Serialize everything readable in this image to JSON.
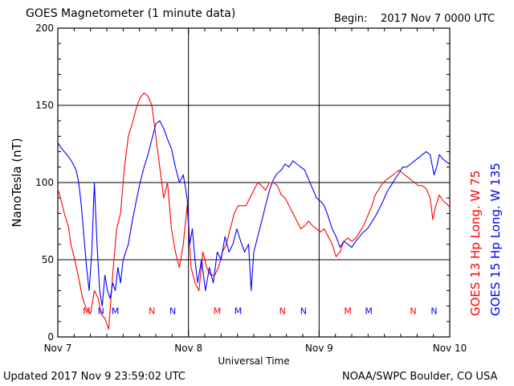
{
  "header": {
    "title": "GOES Magnetometer (1 minute data)",
    "begin_label": "Begin:",
    "begin_value": "2017 Nov 7 0000 UTC"
  },
  "footer": {
    "updated": "Updated 2017 Nov  9 23:59:02 UTC",
    "credit": "NOAA/SWPC Boulder, CO USA"
  },
  "colors": {
    "goes13": "#ff0000",
    "goes15": "#0000ff",
    "axis": "#000000"
  },
  "chart_data": {
    "type": "line",
    "title": "GOES Magnetometer (1 minute data)",
    "xlabel": "Universal Time",
    "ylabel": "NanoTesla (nT)",
    "x_unit": "days since 2017 Nov 7 0000 UTC",
    "xlim": [
      0,
      3
    ],
    "ylim": [
      0,
      200
    ],
    "x_ticks": [
      0,
      1,
      2,
      3
    ],
    "x_tick_labels": [
      "Nov 7",
      "Nov 8",
      "Nov 9",
      "Nov 10"
    ],
    "y_ticks": [
      0,
      50,
      100,
      150,
      200
    ],
    "y_tick_labels": [
      "0",
      "50",
      "100",
      "150",
      "200"
    ],
    "grid": true,
    "legend_position": "right, rotated vertical",
    "series": [
      {
        "name": "GOES 13 Hp  Long. W 75",
        "color": "#ff0000",
        "points": [
          [
            0.0,
            96
          ],
          [
            0.02,
            90
          ],
          [
            0.05,
            80
          ],
          [
            0.08,
            72
          ],
          [
            0.1,
            60
          ],
          [
            0.13,
            50
          ],
          [
            0.16,
            38
          ],
          [
            0.19,
            25
          ],
          [
            0.22,
            18
          ],
          [
            0.25,
            15
          ],
          [
            0.28,
            30
          ],
          [
            0.31,
            25
          ],
          [
            0.33,
            15
          ],
          [
            0.36,
            12
          ],
          [
            0.39,
            5
          ],
          [
            0.42,
            40
          ],
          [
            0.45,
            70
          ],
          [
            0.48,
            80
          ],
          [
            0.51,
            110
          ],
          [
            0.54,
            130
          ],
          [
            0.57,
            138
          ],
          [
            0.6,
            148
          ],
          [
            0.63,
            155
          ],
          [
            0.66,
            158
          ],
          [
            0.69,
            156
          ],
          [
            0.72,
            150
          ],
          [
            0.75,
            130
          ],
          [
            0.78,
            110
          ],
          [
            0.81,
            90
          ],
          [
            0.84,
            100
          ],
          [
            0.87,
            70
          ],
          [
            0.9,
            55
          ],
          [
            0.93,
            45
          ],
          [
            0.96,
            60
          ],
          [
            0.99,
            85
          ],
          [
            1.02,
            45
          ],
          [
            1.05,
            35
          ],
          [
            1.08,
            30
          ],
          [
            1.11,
            55
          ],
          [
            1.14,
            45
          ],
          [
            1.17,
            40
          ],
          [
            1.2,
            40
          ],
          [
            1.23,
            45
          ],
          [
            1.26,
            55
          ],
          [
            1.29,
            60
          ],
          [
            1.32,
            70
          ],
          [
            1.35,
            80
          ],
          [
            1.38,
            85
          ],
          [
            1.41,
            85
          ],
          [
            1.44,
            85
          ],
          [
            1.47,
            90
          ],
          [
            1.5,
            95
          ],
          [
            1.53,
            100
          ],
          [
            1.56,
            98
          ],
          [
            1.59,
            95
          ],
          [
            1.62,
            100
          ],
          [
            1.65,
            100
          ],
          [
            1.68,
            98
          ],
          [
            1.71,
            92
          ],
          [
            1.74,
            90
          ],
          [
            1.77,
            85
          ],
          [
            1.8,
            80
          ],
          [
            1.83,
            75
          ],
          [
            1.86,
            70
          ],
          [
            1.89,
            72
          ],
          [
            1.92,
            75
          ],
          [
            1.95,
            72
          ],
          [
            1.98,
            70
          ],
          [
            2.01,
            68
          ],
          [
            2.04,
            70
          ],
          [
            2.07,
            65
          ],
          [
            2.1,
            60
          ],
          [
            2.13,
            52
          ],
          [
            2.16,
            55
          ],
          [
            2.19,
            62
          ],
          [
            2.22,
            64
          ],
          [
            2.25,
            62
          ],
          [
            2.28,
            64
          ],
          [
            2.31,
            68
          ],
          [
            2.34,
            72
          ],
          [
            2.37,
            78
          ],
          [
            2.4,
            84
          ],
          [
            2.43,
            92
          ],
          [
            2.46,
            96
          ],
          [
            2.49,
            100
          ],
          [
            2.52,
            102
          ],
          [
            2.55,
            104
          ],
          [
            2.58,
            106
          ],
          [
            2.61,
            108
          ],
          [
            2.64,
            106
          ],
          [
            2.67,
            104
          ],
          [
            2.7,
            102
          ],
          [
            2.73,
            100
          ],
          [
            2.76,
            98
          ],
          [
            2.79,
            98
          ],
          [
            2.82,
            96
          ],
          [
            2.85,
            90
          ],
          [
            2.87,
            76
          ],
          [
            2.89,
            84
          ],
          [
            2.92,
            92
          ],
          [
            2.95,
            88
          ],
          [
            2.98,
            86
          ],
          [
            3.0,
            84
          ]
        ]
      },
      {
        "name": "GOES 15 Hp  Long. W 135",
        "color": "#0000ff",
        "points": [
          [
            0.0,
            126
          ],
          [
            0.02,
            123
          ],
          [
            0.05,
            120
          ],
          [
            0.08,
            117
          ],
          [
            0.11,
            113
          ],
          [
            0.14,
            108
          ],
          [
            0.16,
            100
          ],
          [
            0.18,
            85
          ],
          [
            0.2,
            65
          ],
          [
            0.22,
            45
          ],
          [
            0.24,
            30
          ],
          [
            0.26,
            55
          ],
          [
            0.28,
            100
          ],
          [
            0.3,
            60
          ],
          [
            0.32,
            30
          ],
          [
            0.34,
            20
          ],
          [
            0.36,
            40
          ],
          [
            0.38,
            30
          ],
          [
            0.4,
            25
          ],
          [
            0.42,
            35
          ],
          [
            0.44,
            30
          ],
          [
            0.46,
            45
          ],
          [
            0.48,
            35
          ],
          [
            0.5,
            50
          ],
          [
            0.52,
            55
          ],
          [
            0.54,
            60
          ],
          [
            0.57,
            75
          ],
          [
            0.6,
            88
          ],
          [
            0.63,
            100
          ],
          [
            0.66,
            110
          ],
          [
            0.69,
            118
          ],
          [
            0.72,
            128
          ],
          [
            0.75,
            138
          ],
          [
            0.78,
            140
          ],
          [
            0.81,
            135
          ],
          [
            0.84,
            128
          ],
          [
            0.87,
            122
          ],
          [
            0.9,
            110
          ],
          [
            0.93,
            100
          ],
          [
            0.96,
            105
          ],
          [
            0.99,
            90
          ],
          [
            1.01,
            60
          ],
          [
            1.03,
            70
          ],
          [
            1.05,
            50
          ],
          [
            1.07,
            35
          ],
          [
            1.1,
            50
          ],
          [
            1.13,
            30
          ],
          [
            1.16,
            45
          ],
          [
            1.19,
            35
          ],
          [
            1.22,
            55
          ],
          [
            1.25,
            50
          ],
          [
            1.28,
            65
          ],
          [
            1.31,
            55
          ],
          [
            1.34,
            60
          ],
          [
            1.37,
            70
          ],
          [
            1.4,
            62
          ],
          [
            1.43,
            55
          ],
          [
            1.46,
            60
          ],
          [
            1.48,
            30
          ],
          [
            1.5,
            55
          ],
          [
            1.53,
            65
          ],
          [
            1.56,
            75
          ],
          [
            1.59,
            85
          ],
          [
            1.62,
            95
          ],
          [
            1.65,
            102
          ],
          [
            1.68,
            106
          ],
          [
            1.71,
            108
          ],
          [
            1.74,
            112
          ],
          [
            1.77,
            110
          ],
          [
            1.8,
            114
          ],
          [
            1.83,
            112
          ],
          [
            1.86,
            110
          ],
          [
            1.89,
            108
          ],
          [
            1.92,
            102
          ],
          [
            1.95,
            96
          ],
          [
            1.98,
            90
          ],
          [
            2.01,
            88
          ],
          [
            2.04,
            85
          ],
          [
            2.07,
            78
          ],
          [
            2.1,
            70
          ],
          [
            2.13,
            65
          ],
          [
            2.16,
            58
          ],
          [
            2.19,
            62
          ],
          [
            2.22,
            60
          ],
          [
            2.25,
            58
          ],
          [
            2.28,
            62
          ],
          [
            2.31,
            65
          ],
          [
            2.34,
            68
          ],
          [
            2.37,
            70
          ],
          [
            2.4,
            74
          ],
          [
            2.43,
            78
          ],
          [
            2.46,
            83
          ],
          [
            2.49,
            88
          ],
          [
            2.52,
            94
          ],
          [
            2.55,
            98
          ],
          [
            2.58,
            102
          ],
          [
            2.61,
            106
          ],
          [
            2.64,
            110
          ],
          [
            2.67,
            110
          ],
          [
            2.7,
            112
          ],
          [
            2.73,
            114
          ],
          [
            2.76,
            116
          ],
          [
            2.79,
            118
          ],
          [
            2.82,
            120
          ],
          [
            2.85,
            118
          ],
          [
            2.88,
            105
          ],
          [
            2.9,
            110
          ],
          [
            2.92,
            118
          ],
          [
            2.95,
            115
          ],
          [
            2.98,
            113
          ],
          [
            3.0,
            112
          ]
        ]
      }
    ],
    "markers": [
      {
        "label": "M",
        "x": 0.22,
        "y": 17,
        "color": "#ff0000"
      },
      {
        "label": "N",
        "x": 0.33,
        "y": 17,
        "color": "#0000ff"
      },
      {
        "label": "M",
        "x": 0.44,
        "y": 17,
        "color": "#0000ff"
      },
      {
        "label": "N",
        "x": 0.72,
        "y": 17,
        "color": "#ff0000"
      },
      {
        "label": "N",
        "x": 0.88,
        "y": 17,
        "color": "#0000ff"
      },
      {
        "label": "M",
        "x": 1.22,
        "y": 17,
        "color": "#ff0000"
      },
      {
        "label": "M",
        "x": 1.38,
        "y": 17,
        "color": "#0000ff"
      },
      {
        "label": "N",
        "x": 1.72,
        "y": 17,
        "color": "#ff0000"
      },
      {
        "label": "N",
        "x": 1.88,
        "y": 17,
        "color": "#0000ff"
      },
      {
        "label": "M",
        "x": 2.22,
        "y": 17,
        "color": "#ff0000"
      },
      {
        "label": "M",
        "x": 2.38,
        "y": 17,
        "color": "#0000ff"
      },
      {
        "label": "N",
        "x": 2.72,
        "y": 17,
        "color": "#ff0000"
      },
      {
        "label": "N",
        "x": 2.88,
        "y": 17,
        "color": "#0000ff"
      }
    ]
  }
}
